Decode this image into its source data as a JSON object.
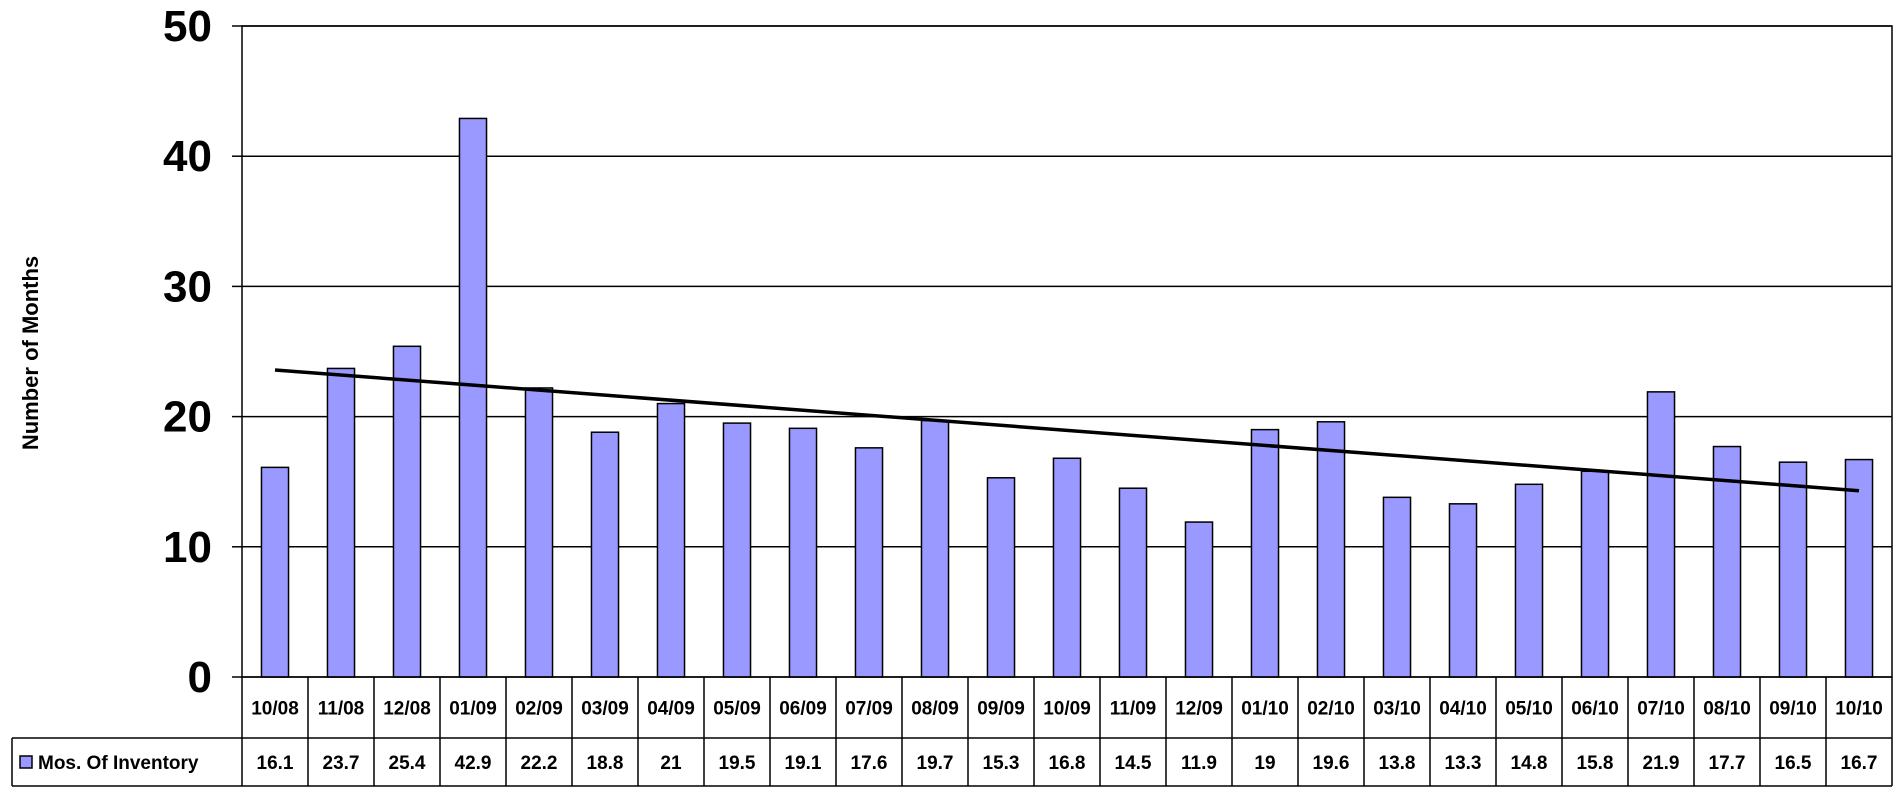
{
  "chart_data": {
    "type": "bar",
    "ylabel": "Number of Months",
    "ylim": [
      0,
      50
    ],
    "yticks": [
      0,
      10,
      20,
      30,
      40,
      50
    ],
    "grid": true,
    "categories": [
      "10/08",
      "11/08",
      "12/08",
      "01/09",
      "02/09",
      "03/09",
      "04/09",
      "05/09",
      "06/09",
      "07/09",
      "08/09",
      "09/09",
      "10/09",
      "11/09",
      "12/09",
      "01/10",
      "02/10",
      "03/10",
      "04/10",
      "05/10",
      "06/10",
      "07/10",
      "08/10",
      "09/10",
      "10/10"
    ],
    "series": [
      {
        "name": "Mos. Of Inventory",
        "color": "#9999ff",
        "values": [
          16.1,
          23.7,
          25.4,
          42.9,
          22.2,
          18.8,
          21,
          19.5,
          19.1,
          17.6,
          19.7,
          15.3,
          16.8,
          14.5,
          11.9,
          19,
          19.6,
          13.8,
          13.3,
          14.8,
          15.8,
          21.9,
          17.7,
          16.5,
          16.7
        ]
      }
    ],
    "trendline": {
      "type": "linear",
      "color": "#000000"
    },
    "legend_placement": "data-table-left"
  }
}
